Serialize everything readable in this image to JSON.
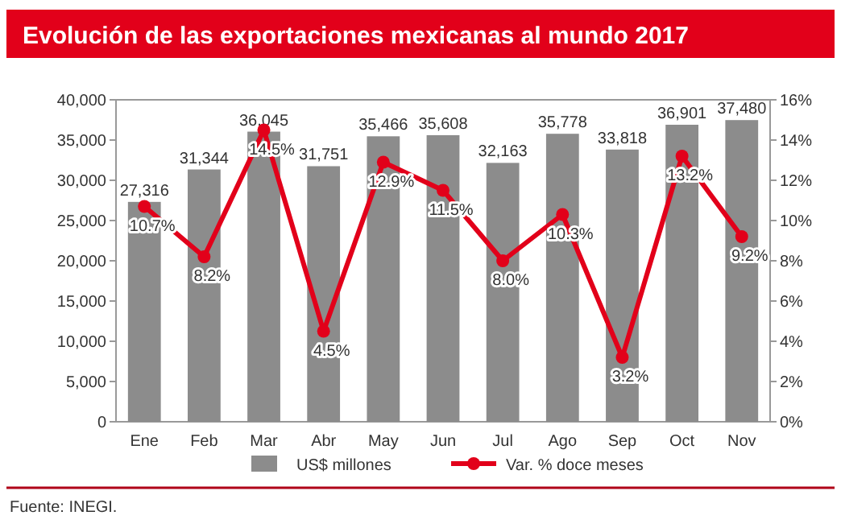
{
  "chart_data": {
    "type": "bar",
    "title": "Evolución de las exportaciones mexicanas al mundo 2017",
    "categories": [
      "Ene",
      "Feb",
      "Mar",
      "Abr",
      "May",
      "Jun",
      "Jul",
      "Ago",
      "Sep",
      "Oct",
      "Nov"
    ],
    "series": [
      {
        "name": "US$ millones",
        "color": "#8c8c8c",
        "values": [
          27316,
          31344,
          36045,
          31751,
          35466,
          35608,
          32163,
          35778,
          33818,
          36901,
          37480
        ],
        "value_labels": [
          "27,316",
          "31,344",
          "36,045",
          "31,751",
          "35,466",
          "35,608",
          "32,163",
          "35,778",
          "33,818",
          "36,901",
          "37,480"
        ]
      },
      {
        "name": "Var. % doce meses",
        "type": "line",
        "axis": "y2",
        "color": "#e2001a",
        "marker": "circle",
        "values": [
          10.7,
          8.2,
          14.5,
          4.5,
          12.9,
          11.5,
          8.0,
          10.3,
          3.2,
          13.2,
          9.2
        ],
        "value_labels": [
          "10.7%",
          "8.2%",
          "14.5%",
          "4.5%",
          "12.9%",
          "11.5%",
          "8.0%",
          "10.3%",
          "3.2%",
          "13.2%",
          "9.2%"
        ]
      }
    ],
    "ylim": [
      0,
      40000
    ],
    "yticks": [
      {
        "value": 0,
        "label": "0"
      },
      {
        "value": 5000,
        "label": "5,000"
      },
      {
        "value": 10000,
        "label": "10,000"
      },
      {
        "value": 15000,
        "label": "15,000"
      },
      {
        "value": 20000,
        "label": "20,000"
      },
      {
        "value": 25000,
        "label": "25,000"
      },
      {
        "value": 30000,
        "label": "30,000"
      },
      {
        "value": 35000,
        "label": "35,000"
      },
      {
        "value": 40000,
        "label": "40,000"
      }
    ],
    "y2lim": [
      0,
      16
    ],
    "y2ticks": [
      {
        "value": 0,
        "label": "0%"
      },
      {
        "value": 2,
        "label": "2%"
      },
      {
        "value": 4,
        "label": "4%"
      },
      {
        "value": 6,
        "label": "6%"
      },
      {
        "value": 8,
        "label": "8%"
      },
      {
        "value": 10,
        "label": "10%"
      },
      {
        "value": 12,
        "label": "12%"
      },
      {
        "value": 14,
        "label": "14%"
      },
      {
        "value": 16,
        "label": "16%"
      }
    ],
    "legend": "bottom",
    "annotations": [
      "Fuente: INEGI."
    ]
  }
}
